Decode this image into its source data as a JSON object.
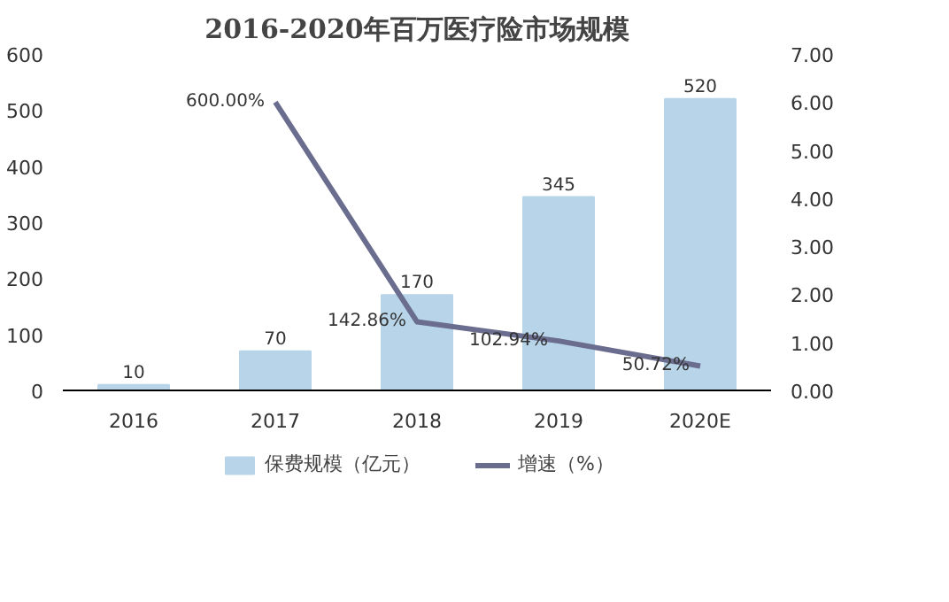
{
  "chart_data": {
    "type": "bar",
    "title": "2016-2020年百万医疗险市场规模",
    "categories": [
      "2016",
      "2017",
      "2018",
      "2019",
      "2020E"
    ],
    "series": [
      {
        "name": "保费规模（亿元）",
        "color": "#b7d4e8",
        "values": [
          10,
          70,
          170,
          345,
          520
        ],
        "value_labels": [
          "10",
          "70",
          "170",
          "345",
          "520"
        ]
      },
      {
        "name": "增速（%）",
        "type": "line",
        "axis": "y2",
        "color": "#6a6d8e",
        "values": [
          null,
          6.0,
          1.4286,
          1.0294,
          0.5072
        ],
        "value_labels": [
          null,
          "600.00%",
          "142.86%",
          "102.94%",
          "50.72%"
        ]
      }
    ],
    "ylim": [
      0,
      600
    ],
    "yticks": [
      0,
      100,
      200,
      300,
      400,
      500,
      600
    ],
    "y2lim": [
      0,
      7
    ],
    "y2ticks": [
      {
        "value": 0,
        "label": "0.00"
      },
      {
        "value": 1,
        "label": "1.00"
      },
      {
        "value": 2,
        "label": "2.00"
      },
      {
        "value": 3,
        "label": "3.00"
      },
      {
        "value": 4,
        "label": "4.00"
      },
      {
        "value": 5,
        "label": "5.00"
      },
      {
        "value": 6,
        "label": "6.00"
      },
      {
        "value": 7,
        "label": "7.00"
      }
    ],
    "grid": false,
    "legend": "bottom",
    "marker": "none",
    "line_style": "solid"
  }
}
